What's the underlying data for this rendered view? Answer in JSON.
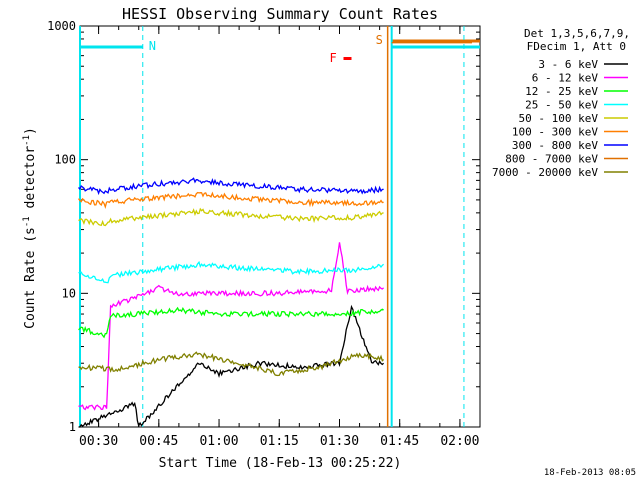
{
  "chart_data": {
    "type": "line",
    "title": "HESSI Observing Summary Count Rates",
    "xlabel": "Start Time (18-Feb-13 00:25:22)",
    "ylabel_main": "Count Rate (s",
    "ylabel_sup1": "-1",
    "ylabel_mid": " detector",
    "ylabel_sup2": "-1",
    "ylabel_end": ")",
    "y_scale": "log",
    "ylim": [
      1,
      1000
    ],
    "xlim": [
      "00:25:22",
      "02:05:00"
    ],
    "x_ticks": [
      "00:30",
      "00:45",
      "01:00",
      "01:15",
      "01:30",
      "01:45",
      "02:00"
    ],
    "y_ticks": [
      "1",
      "10",
      "100",
      "1000"
    ],
    "legend": {
      "placement": "top-right",
      "header_line1": "Det 1,3,5,6,7,9,",
      "header_line2": "FDecim 1, Att 0",
      "entries": [
        {
          "label": "3 - 6 keV",
          "color": "#000000"
        },
        {
          "label": "6 - 12 keV",
          "color": "#ff00ff"
        },
        {
          "label": "12 - 25 keV",
          "color": "#00ff00"
        },
        {
          "label": "25 - 50 keV",
          "color": "#00ffff"
        },
        {
          "label": "50 - 100 keV",
          "color": "#cccc00"
        },
        {
          "label": "100 - 300 keV",
          "color": "#ff7f00"
        },
        {
          "label": "300 - 800 keV",
          "color": "#0000ff"
        },
        {
          "label": "800 - 7000 keV",
          "color": "#e07000"
        },
        {
          "label": "7000 - 20000 keV",
          "color": "#808000"
        }
      ]
    },
    "annotations": {
      "night_label": "N",
      "saa_label": "S",
      "flare_label": "F",
      "timestamp": "18-Feb-2013 08:05"
    },
    "series": [
      {
        "name": "3 - 6 keV",
        "color": "#000000",
        "x": [
          "00:25",
          "00:39",
          "00:40",
          "00:55",
          "01:00",
          "01:10",
          "01:20",
          "01:30",
          "01:33",
          "01:38",
          "01:41"
        ],
        "y": [
          1.0,
          1.5,
          1.0,
          3.0,
          2.5,
          3.0,
          2.8,
          3.0,
          8.0,
          3.0,
          3.0
        ]
      },
      {
        "name": "6 - 12 keV",
        "color": "#ff00ff",
        "x": [
          "00:25",
          "00:32",
          "00:33",
          "00:40",
          "00:45",
          "00:50",
          "01:00",
          "01:15",
          "01:28",
          "01:30",
          "01:32",
          "01:41"
        ],
        "y": [
          1.4,
          1.4,
          8.0,
          9.5,
          11.0,
          10.0,
          10.0,
          10.0,
          10.5,
          24.0,
          10.5,
          11.0
        ]
      },
      {
        "name": "12 - 25 keV",
        "color": "#00ff00",
        "x": [
          "00:25",
          "00:32",
          "00:33",
          "00:40",
          "00:50",
          "01:00",
          "01:20",
          "01:30",
          "01:41"
        ],
        "y": [
          5.5,
          4.8,
          6.8,
          7.0,
          7.5,
          7.0,
          7.0,
          7.0,
          7.5
        ]
      },
      {
        "name": "25 - 50 keV",
        "color": "#00ffff",
        "x": [
          "00:25",
          "00:32",
          "00:33",
          "00:45",
          "00:55",
          "01:05",
          "01:20",
          "01:35",
          "01:41"
        ],
        "y": [
          14.0,
          12.0,
          13.5,
          15.0,
          16.5,
          15.5,
          14.5,
          15.0,
          16.5
        ]
      },
      {
        "name": "50 - 100 keV",
        "color": "#cccc00",
        "x": [
          "00:25",
          "00:32",
          "00:33",
          "00:45",
          "00:55",
          "01:05",
          "01:20",
          "01:35",
          "01:41"
        ],
        "y": [
          35.0,
          33.0,
          35.0,
          38.0,
          41.0,
          39.0,
          36.0,
          37.0,
          40.0
        ]
      },
      {
        "name": "100 - 300 keV",
        "color": "#ff7f00",
        "x": [
          "00:25",
          "00:32",
          "00:33",
          "00:45",
          "00:55",
          "01:05",
          "01:20",
          "01:35",
          "01:41"
        ],
        "y": [
          50.0,
          46.0,
          48.0,
          52.0,
          55.0,
          52.0,
          48.0,
          47.0,
          48.0
        ]
      },
      {
        "name": "300 - 800 keV",
        "color": "#0000ff",
        "x": [
          "00:25",
          "00:32",
          "00:33",
          "00:45",
          "00:55",
          "01:05",
          "01:20",
          "01:35",
          "01:41"
        ],
        "y": [
          62.0,
          57.0,
          60.0,
          66.0,
          70.0,
          65.0,
          60.0,
          58.0,
          60.0
        ]
      },
      {
        "name": "800 - 7000 keV",
        "color": "#e07000",
        "x": [
          "01:43",
          "02:03"
        ],
        "y": [
          750.0,
          750.0
        ]
      },
      {
        "name": "7000 - 20000 keV",
        "color": "#808000",
        "x": [
          "00:25",
          "00:35",
          "00:45",
          "00:55",
          "01:05",
          "01:15",
          "01:25",
          "01:35",
          "01:41"
        ],
        "y": [
          2.8,
          2.7,
          3.2,
          3.5,
          3.0,
          2.5,
          2.8,
          3.5,
          3.2
        ]
      }
    ]
  }
}
